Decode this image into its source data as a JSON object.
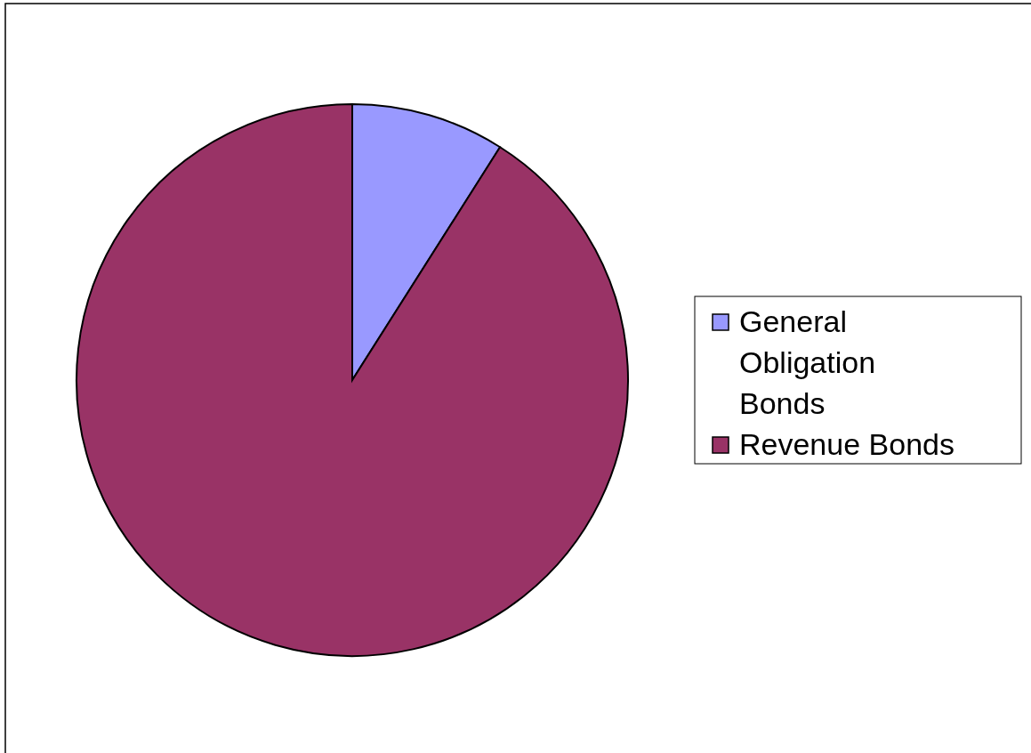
{
  "chart_data": {
    "type": "pie",
    "categories": [
      "General Obligation Bonds",
      "Revenue Bonds"
    ],
    "values": [
      9,
      91
    ],
    "colors": [
      "#9999ff",
      "#993366"
    ],
    "legend": "right"
  }
}
